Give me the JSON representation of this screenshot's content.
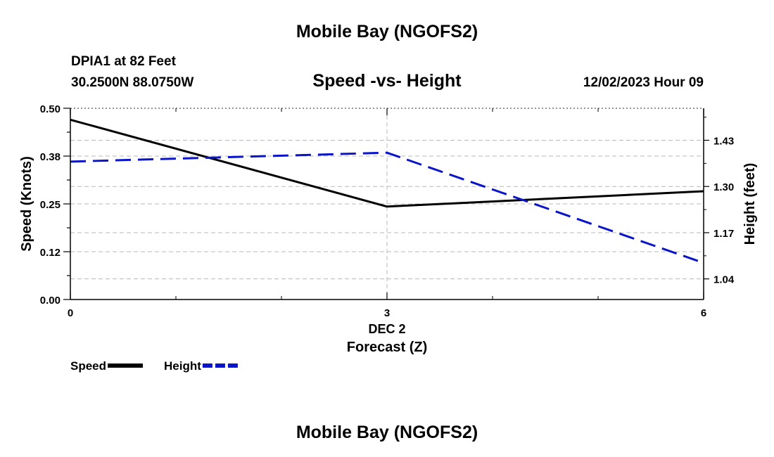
{
  "header": {
    "title": "Mobile Bay (NGOFS2)",
    "station": "DPIA1 at 82 Feet",
    "coords": "30.2500N  88.0750W",
    "datetime": "12/02/2023 Hour 09",
    "footer_title": "Mobile Bay (NGOFS2)"
  },
  "chart_data": {
    "type": "line",
    "title": "Speed -vs- Height",
    "xlabel": "Forecast (Z)",
    "x_sublabel": "DEC 2",
    "ylabel_left": "Speed (Knots)",
    "ylabel_right": "Height (feet)",
    "xlim": [
      0,
      6
    ],
    "ylim_left": [
      0,
      0.5
    ],
    "ylim_right": [
      0.982,
      1.52
    ],
    "x_ticks": [
      0,
      3,
      6
    ],
    "x_tick_labels": [
      "0",
      "3",
      "6"
    ],
    "y_left_ticks": [
      0.0,
      0.125,
      0.25,
      0.375,
      0.5
    ],
    "y_left_tick_labels": [
      "0.00",
      "0.12",
      "0.25",
      "0.38",
      "0.50"
    ],
    "y_right_ticks": [
      1.04,
      1.17,
      1.3,
      1.43
    ],
    "y_right_tick_labels": [
      "1.04",
      "1.17",
      "1.30",
      "1.43"
    ],
    "grid": true,
    "series": [
      {
        "name": "Speed",
        "axis": "left",
        "color": "#000000",
        "style": "solid",
        "x": [
          0,
          3,
          6
        ],
        "values": [
          0.47,
          0.243,
          0.283
        ]
      },
      {
        "name": "Height",
        "axis": "right",
        "color": "#0a14c8",
        "style": "dashed",
        "x": [
          0,
          3,
          6
        ],
        "values": [
          1.37,
          1.395,
          1.085
        ]
      }
    ],
    "legend": {
      "placement": "bottom-left",
      "entries": [
        "Speed",
        "Height"
      ]
    }
  }
}
